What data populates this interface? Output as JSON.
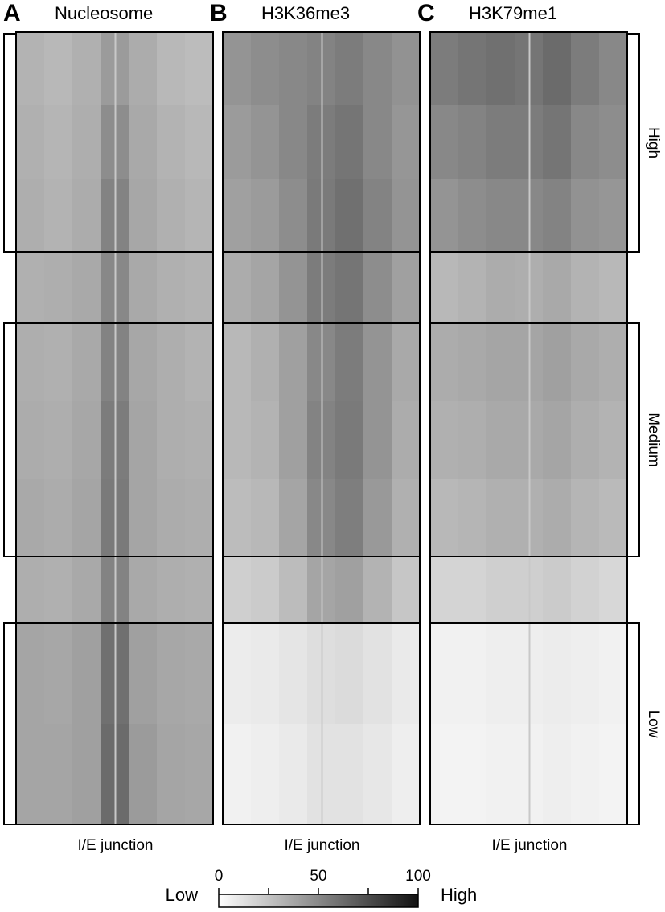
{
  "chart_data": {
    "type": "heatmap",
    "panels": [
      {
        "label": "A",
        "title": "Nucleosome",
        "xlabel": "I/E junction",
        "values": [
          [
            32,
            30,
            33,
            42,
            35,
            30,
            28
          ],
          [
            33,
            31,
            34,
            48,
            36,
            32,
            30
          ],
          [
            34,
            32,
            35,
            52,
            37,
            33,
            31
          ],
          [
            33,
            34,
            36,
            50,
            36,
            33,
            32
          ],
          [
            34,
            33,
            36,
            52,
            37,
            34,
            32
          ],
          [
            35,
            34,
            37,
            55,
            38,
            34,
            33
          ],
          [
            36,
            35,
            38,
            56,
            38,
            35,
            34
          ],
          [
            34,
            33,
            36,
            52,
            36,
            34,
            33
          ],
          [
            38,
            37,
            40,
            60,
            40,
            37,
            36
          ],
          [
            38,
            38,
            40,
            62,
            42,
            38,
            37
          ]
        ]
      },
      {
        "label": "B",
        "title": "H3K36me3",
        "xlabel": "I/E junction",
        "values": [
          [
            45,
            48,
            50,
            52,
            55,
            50,
            46
          ],
          [
            42,
            45,
            50,
            55,
            58,
            50,
            44
          ],
          [
            40,
            42,
            48,
            56,
            60,
            52,
            45
          ],
          [
            35,
            38,
            45,
            55,
            58,
            48,
            40
          ],
          [
            30,
            33,
            40,
            50,
            55,
            45,
            36
          ],
          [
            30,
            32,
            40,
            52,
            56,
            45,
            35
          ],
          [
            28,
            30,
            38,
            50,
            54,
            43,
            33
          ],
          [
            20,
            22,
            28,
            38,
            40,
            32,
            24
          ],
          [
            8,
            9,
            11,
            14,
            15,
            12,
            9
          ],
          [
            6,
            7,
            9,
            12,
            12,
            10,
            7
          ]
        ]
      },
      {
        "label": "C",
        "title": "H3K79me1",
        "xlabel": "I/E junction",
        "values": [
          [
            55,
            58,
            60,
            58,
            62,
            55,
            50
          ],
          [
            50,
            52,
            55,
            55,
            58,
            50,
            48
          ],
          [
            45,
            48,
            50,
            50,
            52,
            46,
            44
          ],
          [
            30,
            32,
            35,
            34,
            36,
            32,
            30
          ],
          [
            35,
            36,
            38,
            38,
            40,
            36,
            34
          ],
          [
            33,
            34,
            36,
            36,
            38,
            34,
            32
          ],
          [
            30,
            31,
            33,
            33,
            35,
            31,
            29
          ],
          [
            18,
            18,
            20,
            20,
            22,
            19,
            17
          ],
          [
            6,
            6,
            7,
            7,
            8,
            7,
            6
          ],
          [
            5,
            5,
            6,
            6,
            7,
            6,
            5
          ]
        ]
      }
    ],
    "groups": [
      "High",
      "Medium",
      "Low"
    ],
    "colorbar": {
      "low_label": "Low",
      "high_label": "High",
      "lim": [
        0,
        100
      ],
      "ticks": [
        0,
        50,
        100
      ],
      "minor_ticks": [
        25,
        75
      ]
    }
  }
}
